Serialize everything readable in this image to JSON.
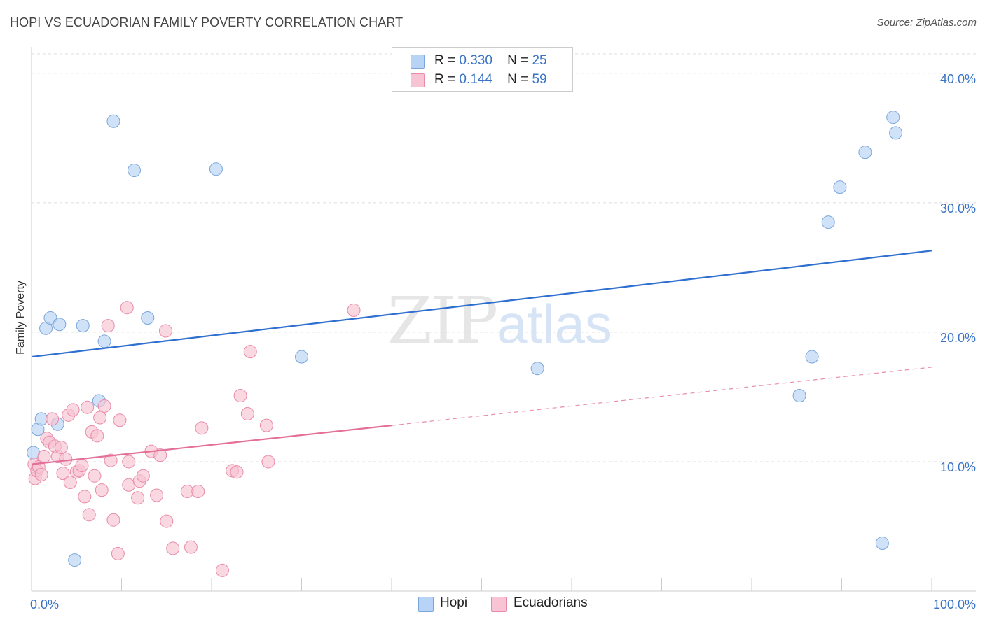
{
  "header": {
    "title": "HOPI VS ECUADORIAN FAMILY POVERTY CORRELATION CHART",
    "source": "Source: ZipAtlas.com"
  },
  "watermark": {
    "zip": "ZIP",
    "atlas": "atlas"
  },
  "legend": {
    "rows": [
      {
        "r_label": "R =",
        "r_value": "0.330",
        "n_label": "N =",
        "n_value": "25",
        "color": "#b7d3f5"
      },
      {
        "r_label": "R =",
        "r_value": "0.144",
        "n_label": "N =",
        "n_value": "59",
        "color": "#f8c3d3"
      }
    ]
  },
  "bottom_legend": {
    "hopi": "Hopi",
    "ecuadorians": "Ecuadorians"
  },
  "colors": {
    "hopi_fill": "#b7d3f5",
    "hopi_stroke": "#7aa6dc",
    "hopi_line": "#2f6fcf",
    "ecu_fill": "#f8c3d3",
    "ecu_stroke": "#e98aa8",
    "ecu_line": "#e4709a",
    "axis_text": "#3a73c6",
    "grid": "#dddddd"
  },
  "chart_data": {
    "type": "scatter",
    "title": "HOPI VS ECUADORIAN FAMILY POVERTY CORRELATION CHART",
    "xlabel": "",
    "ylabel": "Family Poverty",
    "xlim": [
      0,
      100
    ],
    "ylim": [
      0,
      41.5
    ],
    "x_tick_labels": [
      "0.0%",
      "100.0%"
    ],
    "y_ticks": [
      10,
      20,
      30,
      40
    ],
    "y_tick_labels": [
      "10.0%",
      "20.0%",
      "30.0%",
      "40.0%"
    ],
    "grid": true,
    "legend_position": "top-center",
    "series": [
      {
        "name": "Hopi",
        "points": [
          [
            0.2,
            10.7
          ],
          [
            0.7,
            12.5
          ],
          [
            1.1,
            13.3
          ],
          [
            1.6,
            20.3
          ],
          [
            2.1,
            21.1
          ],
          [
            2.9,
            12.9
          ],
          [
            3.1,
            20.6
          ],
          [
            4.8,
            2.4
          ],
          [
            5.7,
            20.5
          ],
          [
            7.5,
            14.7
          ],
          [
            8.1,
            19.3
          ],
          [
            9.1,
            36.3
          ],
          [
            11.4,
            32.5
          ],
          [
            12.9,
            21.1
          ],
          [
            20.5,
            32.6
          ],
          [
            30.0,
            18.1
          ],
          [
            56.2,
            17.2
          ],
          [
            85.3,
            15.1
          ],
          [
            86.7,
            18.1
          ],
          [
            88.5,
            28.5
          ],
          [
            89.8,
            31.2
          ],
          [
            92.6,
            33.9
          ],
          [
            94.5,
            3.7
          ],
          [
            95.7,
            36.6
          ],
          [
            96.0,
            35.4
          ]
        ],
        "trend": {
          "x0": 0,
          "y0": 18.1,
          "x1": 100,
          "y1": 26.3,
          "style": "solid"
        }
      },
      {
        "name": "Ecuadorians",
        "points": [
          [
            0.3,
            9.8
          ],
          [
            0.4,
            8.7
          ],
          [
            0.6,
            9.3
          ],
          [
            0.8,
            9.6
          ],
          [
            1.1,
            9.0
          ],
          [
            1.4,
            10.4
          ],
          [
            1.7,
            11.8
          ],
          [
            2.0,
            11.5
          ],
          [
            2.3,
            13.3
          ],
          [
            2.6,
            11.2
          ],
          [
            2.9,
            10.4
          ],
          [
            3.3,
            11.1
          ],
          [
            3.5,
            9.1
          ],
          [
            3.8,
            10.2
          ],
          [
            4.1,
            13.6
          ],
          [
            4.3,
            8.4
          ],
          [
            4.6,
            14.0
          ],
          [
            5.0,
            9.2
          ],
          [
            5.3,
            9.3
          ],
          [
            5.6,
            9.7
          ],
          [
            5.9,
            7.3
          ],
          [
            6.2,
            14.2
          ],
          [
            6.4,
            5.9
          ],
          [
            6.7,
            12.3
          ],
          [
            7.0,
            8.9
          ],
          [
            7.3,
            12.0
          ],
          [
            7.6,
            13.4
          ],
          [
            7.8,
            7.8
          ],
          [
            8.1,
            14.3
          ],
          [
            8.5,
            20.5
          ],
          [
            8.8,
            10.1
          ],
          [
            9.1,
            5.5
          ],
          [
            9.6,
            2.9
          ],
          [
            9.8,
            13.2
          ],
          [
            10.6,
            21.9
          ],
          [
            10.8,
            8.2
          ],
          [
            10.8,
            10.0
          ],
          [
            11.8,
            7.2
          ],
          [
            12.0,
            8.5
          ],
          [
            12.4,
            8.9
          ],
          [
            13.3,
            10.8
          ],
          [
            13.9,
            7.4
          ],
          [
            14.3,
            10.5
          ],
          [
            14.9,
            20.1
          ],
          [
            15.0,
            5.4
          ],
          [
            15.7,
            3.3
          ],
          [
            17.3,
            7.7
          ],
          [
            17.7,
            3.4
          ],
          [
            18.5,
            7.7
          ],
          [
            18.9,
            12.6
          ],
          [
            21.2,
            1.6
          ],
          [
            22.3,
            9.3
          ],
          [
            22.8,
            9.2
          ],
          [
            23.2,
            15.1
          ],
          [
            24.0,
            13.7
          ],
          [
            24.3,
            18.5
          ],
          [
            26.1,
            12.8
          ],
          [
            26.3,
            10.0
          ],
          [
            35.8,
            21.7
          ]
        ],
        "trend": {
          "x0": 0,
          "y0": 9.8,
          "x1": 40,
          "y1": 12.8,
          "style": "solid",
          "extension": {
            "x1": 100,
            "y1": 17.3,
            "style": "dashed"
          }
        }
      }
    ]
  }
}
